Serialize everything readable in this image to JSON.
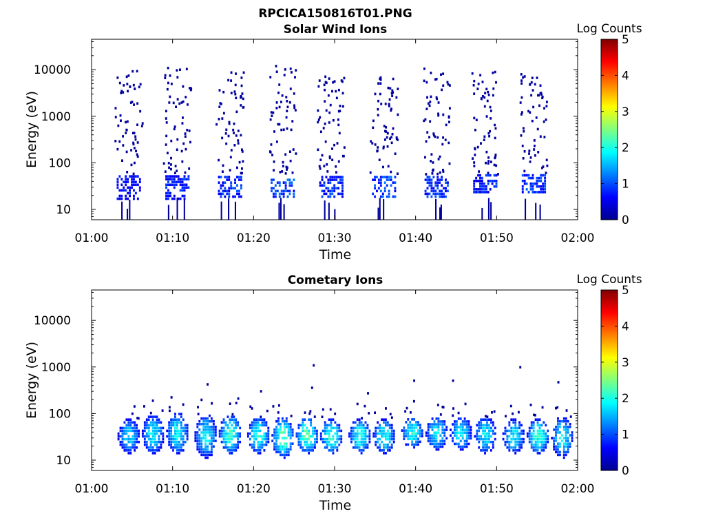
{
  "figure": {
    "title": "RPCICA150816T01.PNG"
  },
  "colors": {
    "axis": "#000000",
    "colormap": "jet",
    "colormap_stops": [
      "#00008f",
      "#0000ff",
      "#0080ff",
      "#00ffff",
      "#80ff80",
      "#ffff00",
      "#ff8000",
      "#ff0000",
      "#800000"
    ]
  },
  "chart_data": [
    {
      "type": "heatmap",
      "title": "Solar Wind Ions",
      "xlabel": "Time",
      "ylabel": "Energy (eV)",
      "x_ticks": [
        "01:00",
        "01:10",
        "01:20",
        "01:30",
        "01:40",
        "01:50",
        "02:00"
      ],
      "xlim_minutes": [
        0,
        60
      ],
      "y_ticks": [
        "10",
        "100",
        "1000",
        "10000"
      ],
      "y_tick_values": [
        10,
        100,
        1000,
        10000
      ],
      "ylim": [
        6,
        45000
      ],
      "yscale": "log",
      "colorbar": {
        "label": "Log Counts",
        "ticks": [
          "0",
          "1",
          "2",
          "3",
          "4",
          "5"
        ],
        "range": [
          0,
          5
        ]
      },
      "bursts_center_minutes": [
        4.5,
        10.5,
        17.0,
        23.5,
        29.5,
        36.0,
        42.5,
        48.5,
        54.5
      ],
      "bursts": [
        {
          "t": 4.5,
          "low_energy_eV": [
            18,
            60
          ],
          "low_logcounts": 0.6,
          "sparse_energy_eV": [
            60,
            10000
          ],
          "sparse_logcounts": 0.0
        },
        {
          "t": 10.5,
          "low_energy_eV": [
            18,
            60
          ],
          "low_logcounts": 0.7,
          "sparse_energy_eV": [
            60,
            12000
          ],
          "sparse_logcounts": 0.0
        },
        {
          "t": 17.0,
          "low_energy_eV": [
            20,
            55
          ],
          "low_logcounts": 0.8,
          "sparse_energy_eV": [
            60,
            11000
          ],
          "sparse_logcounts": 0.0
        },
        {
          "t": 23.5,
          "low_energy_eV": [
            20,
            50
          ],
          "low_logcounts": 0.9,
          "sparse_energy_eV": [
            60,
            13000
          ],
          "sparse_logcounts": 0.0
        },
        {
          "t": 29.5,
          "low_energy_eV": [
            20,
            55
          ],
          "low_logcounts": 0.8,
          "sparse_energy_eV": [
            60,
            9000
          ],
          "sparse_logcounts": 0.0
        },
        {
          "t": 36.0,
          "low_energy_eV": [
            20,
            55
          ],
          "low_logcounts": 0.9,
          "sparse_energy_eV": [
            60,
            11000
          ],
          "sparse_logcounts": 0.0
        },
        {
          "t": 42.5,
          "low_energy_eV": [
            20,
            60
          ],
          "low_logcounts": 0.8,
          "sparse_energy_eV": [
            60,
            12000
          ],
          "sparse_logcounts": 0.0
        },
        {
          "t": 48.5,
          "low_energy_eV": [
            25,
            60
          ],
          "low_logcounts": 0.7,
          "sparse_energy_eV": [
            60,
            10000
          ],
          "sparse_logcounts": 0.0
        },
        {
          "t": 54.5,
          "low_energy_eV": [
            25,
            60
          ],
          "low_logcounts": 0.8,
          "sparse_energy_eV": [
            60,
            9000
          ],
          "sparse_logcounts": 0.0
        }
      ]
    },
    {
      "type": "heatmap",
      "title": "Cometary Ions",
      "xlabel": "Time",
      "ylabel": "Energy (eV)",
      "x_ticks": [
        "01:00",
        "01:10",
        "01:20",
        "01:30",
        "01:40",
        "01:50",
        "02:00"
      ],
      "xlim_minutes": [
        0,
        60
      ],
      "y_ticks": [
        "10",
        "100",
        "1000",
        "10000"
      ],
      "y_tick_values": [
        10,
        100,
        1000,
        10000
      ],
      "ylim": [
        6,
        45000
      ],
      "yscale": "log",
      "colorbar": {
        "label": "Log Counts",
        "ticks": [
          "0",
          "1",
          "2",
          "3",
          "4",
          "5"
        ],
        "range": [
          0,
          5
        ]
      },
      "bursts_center_minutes": [
        4.5,
        7.5,
        10.5,
        14.0,
        17.0,
        20.5,
        23.5,
        26.5,
        29.5,
        33.0,
        36.0,
        39.5,
        42.5,
        45.5,
        48.5,
        52.0,
        55.0,
        58.0
      ],
      "bursts": [
        {
          "t": 4.5,
          "energy_eV": [
            15,
            80
          ],
          "peak_logcounts": 1.8
        },
        {
          "t": 7.5,
          "energy_eV": [
            15,
            100
          ],
          "peak_logcounts": 2.0
        },
        {
          "t": 10.5,
          "energy_eV": [
            15,
            110
          ],
          "peak_logcounts": 2.1
        },
        {
          "t": 14.0,
          "energy_eV": [
            12,
            100
          ],
          "peak_logcounts": 2.0
        },
        {
          "t": 17.0,
          "energy_eV": [
            15,
            100
          ],
          "peak_logcounts": 2.3
        },
        {
          "t": 20.5,
          "energy_eV": [
            15,
            90
          ],
          "peak_logcounts": 2.2
        },
        {
          "t": 23.5,
          "energy_eV": [
            12,
            90
          ],
          "peak_logcounts": 2.4
        },
        {
          "t": 26.5,
          "energy_eV": [
            15,
            90
          ],
          "peak_logcounts": 2.5
        },
        {
          "t": 29.5,
          "energy_eV": [
            15,
            80
          ],
          "peak_logcounts": 2.3
        },
        {
          "t": 33.0,
          "energy_eV": [
            15,
            80
          ],
          "peak_logcounts": 2.2
        },
        {
          "t": 36.0,
          "energy_eV": [
            15,
            80
          ],
          "peak_logcounts": 2.1
        },
        {
          "t": 39.5,
          "energy_eV": [
            20,
            90
          ],
          "peak_logcounts": 2.1
        },
        {
          "t": 42.5,
          "energy_eV": [
            18,
            90
          ],
          "peak_logcounts": 2.0
        },
        {
          "t": 45.5,
          "energy_eV": [
            18,
            90
          ],
          "peak_logcounts": 2.0
        },
        {
          "t": 48.5,
          "energy_eV": [
            15,
            90
          ],
          "peak_logcounts": 2.0
        },
        {
          "t": 52.0,
          "energy_eV": [
            15,
            80
          ],
          "peak_logcounts": 2.0
        },
        {
          "t": 55.0,
          "energy_eV": [
            15,
            80
          ],
          "peak_logcounts": 2.3
        },
        {
          "t": 58.0,
          "energy_eV": [
            12,
            90
          ],
          "peak_logcounts": 2.0
        }
      ],
      "isolated_points": [
        {
          "t": 14.2,
          "energy_eV": 450,
          "logcounts": 0.0
        },
        {
          "t": 20.8,
          "energy_eV": 320,
          "logcounts": 0.0
        },
        {
          "t": 27.3,
          "energy_eV": 1150,
          "logcounts": 0.0
        },
        {
          "t": 27.1,
          "energy_eV": 380,
          "logcounts": 0.0
        },
        {
          "t": 34.0,
          "energy_eV": 290,
          "logcounts": 0.0
        },
        {
          "t": 39.7,
          "energy_eV": 540,
          "logcounts": 0.0
        },
        {
          "t": 44.5,
          "energy_eV": 540,
          "logcounts": 0.0
        },
        {
          "t": 52.8,
          "energy_eV": 1050,
          "logcounts": 0.0
        },
        {
          "t": 57.5,
          "energy_eV": 500,
          "logcounts": 0.0
        }
      ]
    }
  ]
}
